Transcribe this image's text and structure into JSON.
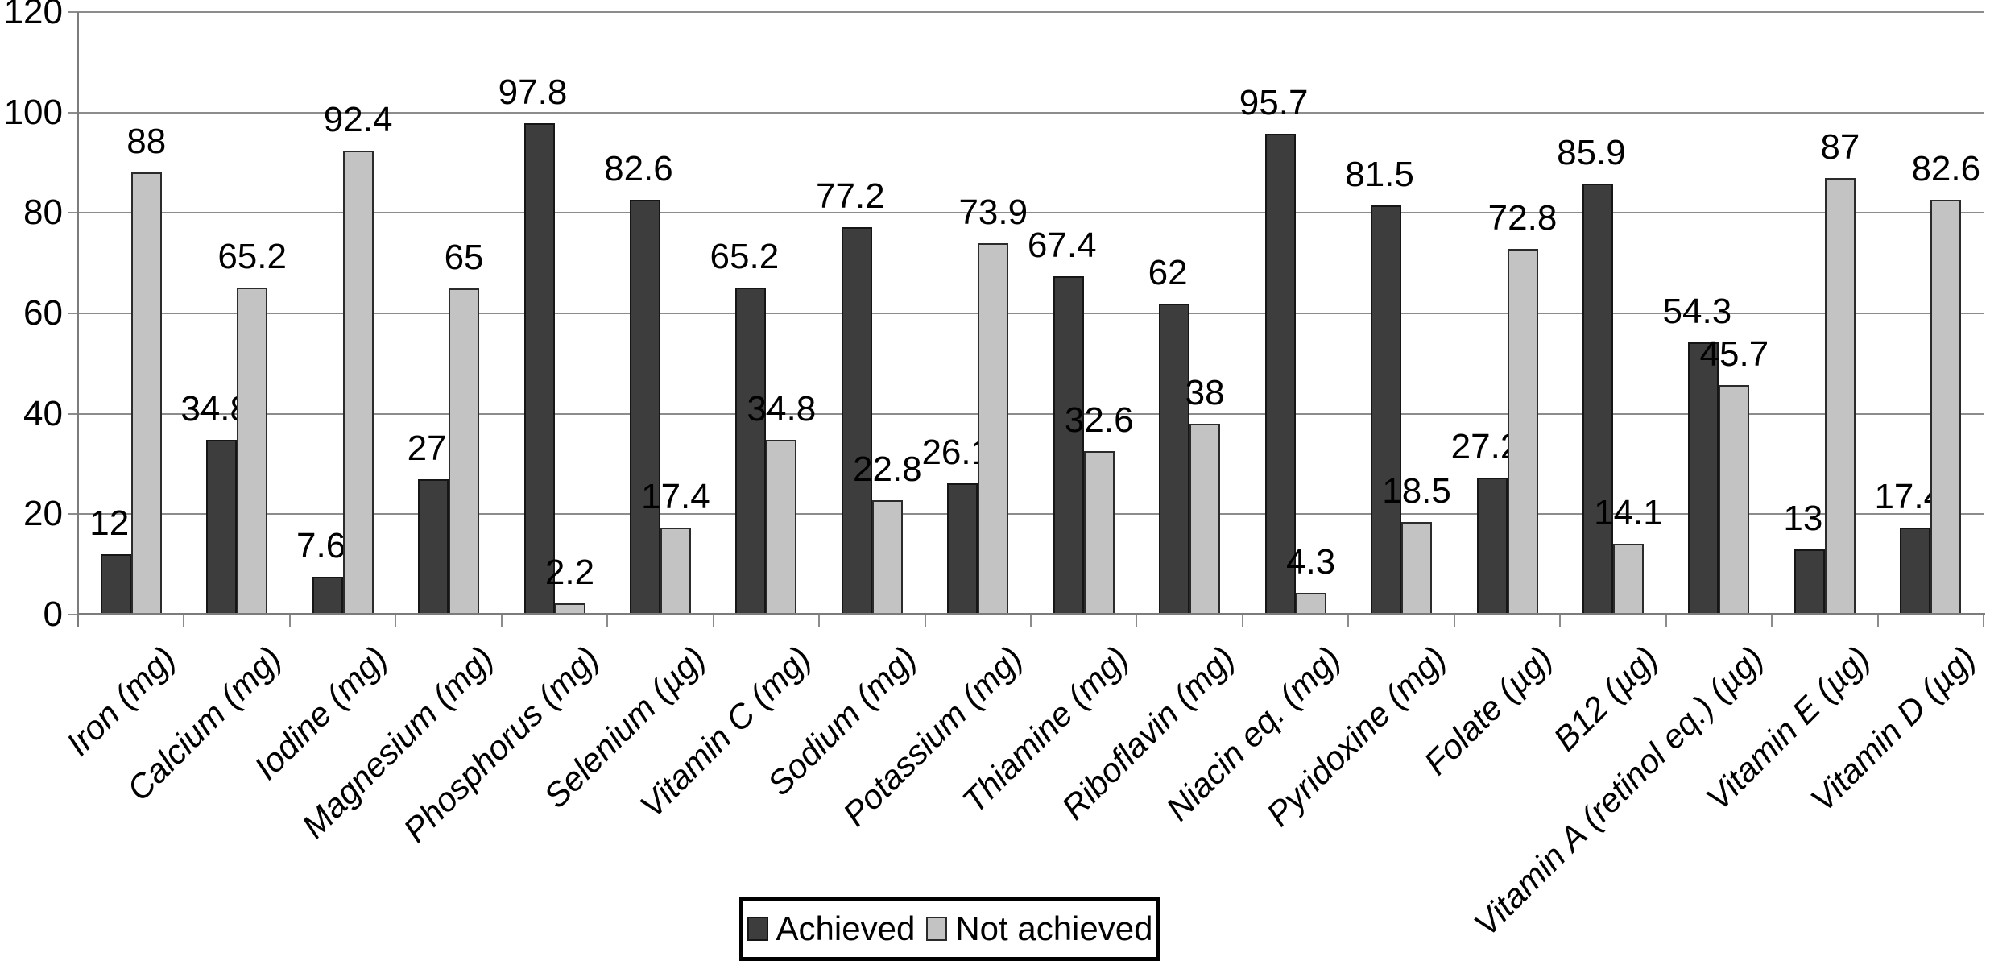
{
  "chart_data": {
    "type": "bar",
    "title": "",
    "xlabel": "",
    "ylabel": "",
    "categories": [
      "Iron (mg)",
      "Calcium (mg)",
      "Iodine (mg)",
      "Magnesium (mg)",
      "Phosphorus (mg)",
      "Selenium (µg)",
      "Vitamin C (mg)",
      "Sodium (mg)",
      "Potassium (mg)",
      "Thiamine (mg)",
      "Riboflavin (mg)",
      "Niacin eq. (mg)",
      "Pyridoxine (mg)",
      "Folate (µg)",
      "B12 (µg)",
      "Vitamin A (retinol eq.) (µg)",
      "Vitamin E (µg)",
      "Vitamin D (µg)"
    ],
    "series": [
      {
        "name": "Achieved",
        "values": [
          12,
          34.8,
          7.6,
          27,
          97.8,
          82.6,
          65.2,
          77.2,
          26.1,
          67.4,
          62,
          95.7,
          81.5,
          27.2,
          85.9,
          54.3,
          13,
          17.4
        ]
      },
      {
        "name": "Not achieved",
        "values": [
          88,
          65.2,
          92.4,
          65,
          2.2,
          17.4,
          34.8,
          22.8,
          73.9,
          32.6,
          38,
          4.3,
          18.5,
          72.8,
          14.1,
          45.7,
          87,
          82.6
        ]
      }
    ],
    "ylim": [
      0,
      120
    ],
    "yticks": [
      0,
      20,
      40,
      60,
      80,
      100,
      120
    ],
    "grid": true,
    "legend_position": "bottom-center",
    "colors": {
      "achieved": "#3d3d3d",
      "not_achieved": "#c3c3c3",
      "gridline": "#8c8c8c",
      "axis": "#7c7c7c",
      "text": "#000000"
    }
  }
}
